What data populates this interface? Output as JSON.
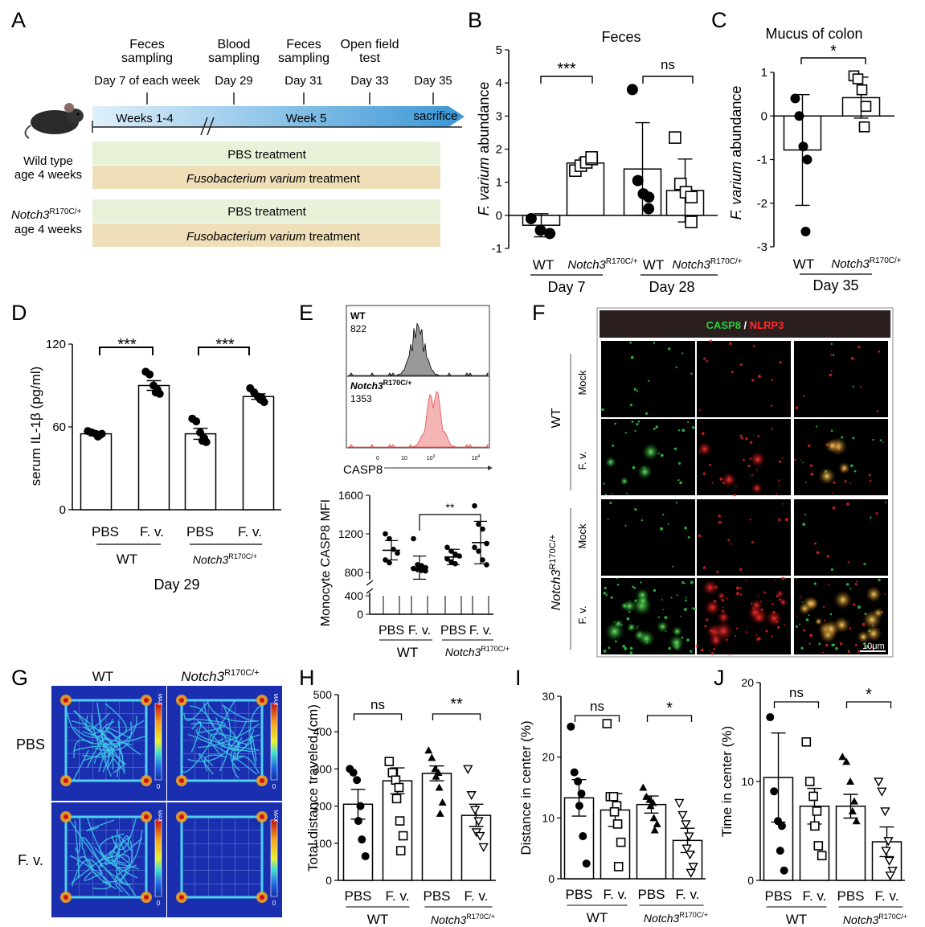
{
  "panels": {
    "A": {
      "label": "A",
      "events": [
        {
          "title": "Feces\nsampling",
          "day": "Day 7 of each week"
        },
        {
          "title": "Blood\nsampling",
          "day": "Day 29"
        },
        {
          "title": "Feces\nsampling",
          "day": "Day 31"
        },
        {
          "title": "Open field\ntest",
          "day": "Day 33"
        },
        {
          "title": "",
          "day": "Day 35"
        }
      ],
      "weeks_1_4": "Weeks 1-4",
      "week_5": "Week 5",
      "sacrifice": "sacrifice",
      "group1_line1": "Wild type",
      "group1_line2": "age 4 weeks",
      "group2_gene": "Notch3",
      "group2_sup": "R170C/+",
      "group2_line2": "age 4 weeks",
      "pbs_treatment": "PBS treatment",
      "fv_species": "Fusobacterium varium",
      "fv_suffix": " treatment",
      "colors": {
        "pbs_band": "#e8f2d8",
        "fv_band": "#efdfb8",
        "arrow_start": "#dff0fa",
        "arrow_end": "#3a96d6"
      }
    },
    "B": {
      "label": "B",
      "title": "Feces",
      "ylabel_italic": "F. varium",
      "ylabel_rest": " abundance",
      "yticks": [
        "5",
        "4",
        "3",
        "2",
        "1",
        "0",
        "-1"
      ],
      "groups": [
        {
          "label": "WT",
          "sup": ""
        },
        {
          "label": "Notch3",
          "sup": "R170C/+"
        },
        {
          "label": "WT",
          "sup": ""
        },
        {
          "label": "Notch3",
          "sup": "R170C/+"
        }
      ],
      "days": [
        "Day 7",
        "Day 28"
      ],
      "sig": [
        "***",
        "ns"
      ]
    },
    "C": {
      "label": "C",
      "title": "Mucus of colon",
      "ylabel_italic": "F. varium",
      "ylabel_rest": " abundance",
      "yticks": [
        "1",
        "0",
        "-1",
        "-2",
        "-3"
      ],
      "groups": [
        {
          "label": "WT",
          "sup": ""
        },
        {
          "label": "Notch3",
          "sup": "R170C/+"
        }
      ],
      "day": "Day 35",
      "sig": "*"
    },
    "D": {
      "label": "D",
      "ylabel": "serum IL-1β (pg/ml)",
      "yticks": [
        "120",
        "60",
        "0"
      ],
      "groups": [
        "PBS",
        "F. v.",
        "PBS",
        "F. v."
      ],
      "wt": "WT",
      "gene": "Notch3",
      "sup": "R170C/+",
      "day": "Day 29",
      "sig": [
        "***",
        "***"
      ]
    },
    "E": {
      "label": "E",
      "hist_wt_label": "WT",
      "hist_wt_value": "822",
      "hist_mut_gene": "Notch3",
      "hist_mut_sup": "R170C/+",
      "hist_mut_value": "1353",
      "axis_label": "CASP8",
      "hist_ticks": [
        "0",
        "10",
        "10",
        "10"
      ],
      "hist_exps": [
        "",
        "",
        "3",
        "4"
      ],
      "ylabel": "Monocyte CASP8 MFI",
      "yticks": [
        "1600",
        "1200",
        "800",
        "400",
        "0"
      ],
      "groups": [
        "PBS",
        "F. v.",
        "PBS",
        "F. v."
      ],
      "wt": "WT",
      "gene": "Notch3",
      "sup": "R170C/+",
      "sig": "**"
    },
    "F": {
      "label": "F",
      "header_casp8": "CASP8",
      "header_sep": " / ",
      "header_nlrp3": "NLRP3",
      "wt": "WT",
      "gene": "Notch3",
      "sup": "R170C/+",
      "rows": [
        "Mock",
        "F. v.",
        "Mock",
        "F. v."
      ],
      "scale": "10μm"
    },
    "G": {
      "label": "G",
      "cols": [
        {
          "label": "WT",
          "sup": ""
        },
        {
          "label": "Notch3",
          "sup": "R170C/+"
        }
      ],
      "rows": [
        "PBS",
        "F. v."
      ],
      "max": "MAX",
      "zero": "0"
    },
    "H": {
      "label": "H",
      "ylabel": "Total distance traveled (cm)",
      "yticks": [
        "500",
        "400",
        "300",
        "200",
        "100",
        "0"
      ],
      "groups": [
        "PBS",
        "F. v.",
        "PBS",
        "F. v."
      ],
      "wt": "WT",
      "gene": "Notch3",
      "sup": "R170C/+",
      "sig": [
        "ns",
        "**"
      ]
    },
    "I": {
      "label": "I",
      "ylabel": "Distance in center (%)",
      "yticks": [
        "30",
        "20",
        "10",
        "0"
      ],
      "groups": [
        "PBS",
        "F. v.",
        "PBS",
        "F. v."
      ],
      "wt": "WT",
      "gene": "Notch3",
      "sup": "R170C/+",
      "sig": [
        "ns",
        "*"
      ]
    },
    "J": {
      "label": "J",
      "ylabel": "Time in center (%)",
      "yticks": [
        "20",
        "10",
        "0"
      ],
      "groups": [
        "PBS",
        "F. v.",
        "PBS",
        "F. v."
      ],
      "wt": "WT",
      "gene": "Notch3",
      "sup": "R170C/+",
      "sig": [
        "ns",
        "*"
      ]
    }
  },
  "chart_data": [
    {
      "panel": "B",
      "type": "bar",
      "title": "Feces",
      "ylim": [
        -1,
        5
      ],
      "categories": [
        "WT",
        "Notch3 R170C/+",
        "WT",
        "Notch3 R170C/+"
      ],
      "values": [
        -0.3,
        1.58,
        1.4,
        0.75
      ],
      "errors": [
        0.35,
        0.15,
        1.4,
        0.95
      ],
      "points": [
        [
          -0.1,
          -0.45,
          -0.55
        ],
        [
          1.35,
          1.5,
          1.6,
          1.7,
          1.75
        ],
        [
          3.8,
          1.05,
          0.65,
          0.55,
          0.2
        ],
        [
          2.35,
          0.95,
          0.7,
          0.55,
          -0.2
        ]
      ],
      "markers": [
        "filled-circle",
        "open-square",
        "filled-circle",
        "open-square"
      ]
    },
    {
      "panel": "C",
      "type": "bar",
      "title": "Mucus of colon",
      "ylim": [
        -3,
        1
      ],
      "categories": [
        "WT",
        "Notch3 R170C/+"
      ],
      "values": [
        -0.78,
        0.42
      ],
      "errors": [
        1.27,
        0.47
      ],
      "points": [
        [
          0.4,
          0.0,
          -0.7,
          -1.0,
          -2.65
        ],
        [
          0.92,
          0.85,
          0.6,
          0.22,
          -0.25
        ]
      ],
      "markers": [
        "filled-circle",
        "open-square"
      ]
    },
    {
      "panel": "D",
      "type": "bar",
      "ylim": [
        0,
        120
      ],
      "categories": [
        "PBS",
        "F. v.",
        "PBS",
        "F. v."
      ],
      "values": [
        55,
        90,
        55,
        82
      ],
      "errors": [
        1.5,
        3.5,
        4,
        2
      ],
      "points": [
        [
          57,
          56,
          55,
          54,
          53,
          55
        ],
        [
          100,
          98,
          90,
          87,
          85,
          84
        ],
        [
          66,
          64,
          56,
          52,
          50,
          49
        ],
        [
          88,
          85,
          82,
          81,
          80,
          78
        ]
      ],
      "markers": [
        "filled-circle",
        "filled-circle",
        "filled-circle",
        "filled-circle"
      ]
    },
    {
      "panel": "E",
      "type": "scatter",
      "ylim": [
        0,
        1600
      ],
      "categories": [
        "PBS",
        "F. v.",
        "PBS",
        "F. v."
      ],
      "values": [
        1030,
        850,
        960,
        1110
      ],
      "errors": [
        100,
        120,
        80,
        220
      ],
      "points": [
        [
          1200,
          1150,
          1040,
          1000,
          930,
          900
        ],
        [
          1150,
          880,
          870,
          850,
          840,
          830,
          820,
          815
        ],
        [
          1060,
          1020,
          990,
          970,
          940,
          910,
          890
        ],
        [
          1490,
          1300,
          1250,
          1100,
          1060,
          1020,
          930,
          880
        ]
      ]
    },
    {
      "panel": "H",
      "type": "bar",
      "ylim": [
        0,
        500
      ],
      "categories": [
        "PBS",
        "F. v.",
        "PBS",
        "F. v."
      ],
      "values": [
        205,
        268,
        288,
        175
      ],
      "errors": [
        40,
        35,
        20,
        30
      ],
      "points": [
        [
          300,
          290,
          270,
          200,
          160,
          110,
          65
        ],
        [
          320,
          290,
          270,
          250,
          220,
          160,
          120,
          80
        ],
        [
          350,
          330,
          300,
          290,
          280,
          250,
          210,
          180
        ],
        [
          300,
          230,
          190,
          160,
          130,
          120,
          90
        ]
      ],
      "markers": [
        "filled-circle",
        "open-square",
        "filled-triangle",
        "open-triangle"
      ]
    },
    {
      "panel": "I",
      "type": "bar",
      "ylim": [
        0,
        30
      ],
      "categories": [
        "PBS",
        "F. v.",
        "PBS",
        "F. v."
      ],
      "values": [
        13.3,
        11.3,
        12.2,
        6.3
      ],
      "errors": [
        3,
        2.7,
        1.4,
        2
      ],
      "points": [
        [
          25,
          17.5,
          16,
          14,
          12,
          7,
          2.5
        ],
        [
          25.5,
          13.5,
          13.5,
          12,
          11,
          9,
          6,
          2
        ],
        [
          15,
          13.5,
          13,
          12.5,
          12,
          10,
          9,
          8
        ],
        [
          12.5,
          10.5,
          9,
          7,
          5,
          4,
          2,
          1
        ]
      ],
      "markers": [
        "filled-circle",
        "open-square",
        "filled-triangle",
        "open-triangle"
      ]
    },
    {
      "panel": "J",
      "type": "bar",
      "ylim": [
        0,
        20
      ],
      "categories": [
        "PBS",
        "F. v.",
        "PBS",
        "F. v."
      ],
      "values": [
        10.4,
        7.5,
        7.5,
        3.9
      ],
      "errors": [
        4.5,
        1.8,
        1.2,
        1.5
      ],
      "points": [
        [
          16.5,
          9,
          6,
          5.5,
          3,
          1
        ],
        [
          14,
          10,
          8.5,
          7,
          5.5,
          3.5,
          2.5
        ],
        [
          12.5,
          12,
          10,
          8,
          7,
          6
        ],
        [
          10,
          9,
          7,
          4,
          3,
          2,
          1,
          0.5
        ]
      ],
      "markers": [
        "filled-circle",
        "open-square",
        "filled-triangle",
        "open-triangle"
      ]
    }
  ]
}
